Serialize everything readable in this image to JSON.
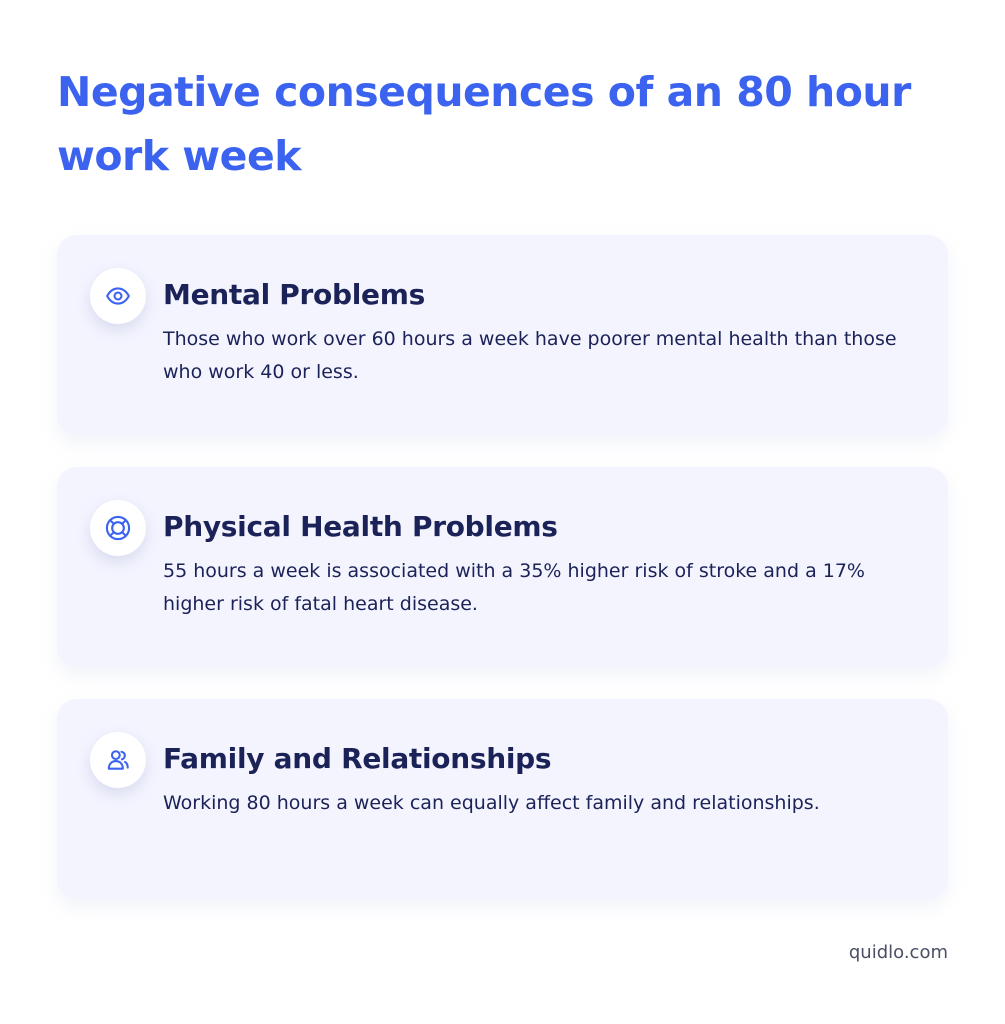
{
  "title": "Negative consequences of an 80 hour work week",
  "colors": {
    "title": "#3b63f0",
    "card_background": "#f3f4fe",
    "heading_text": "#1b2258",
    "icon_accent": "#3b63f0",
    "footer_text": "#4a4f66"
  },
  "cards": [
    {
      "icon": "eye-icon",
      "heading": "Mental Problems",
      "text": "Those who work over 60 hours a week have poorer mental health than those who work 40 or less."
    },
    {
      "icon": "lifebuoy-icon",
      "heading": "Physical Health Problems",
      "text": "55 hours a week is associated with a 35% higher risk of stroke and a 17% higher risk of fatal heart disease."
    },
    {
      "icon": "users-icon",
      "heading": "Family and Relationships",
      "text": "Working 80 hours a week can equally affect family and relationships."
    }
  ],
  "footer": "quidlo.com"
}
